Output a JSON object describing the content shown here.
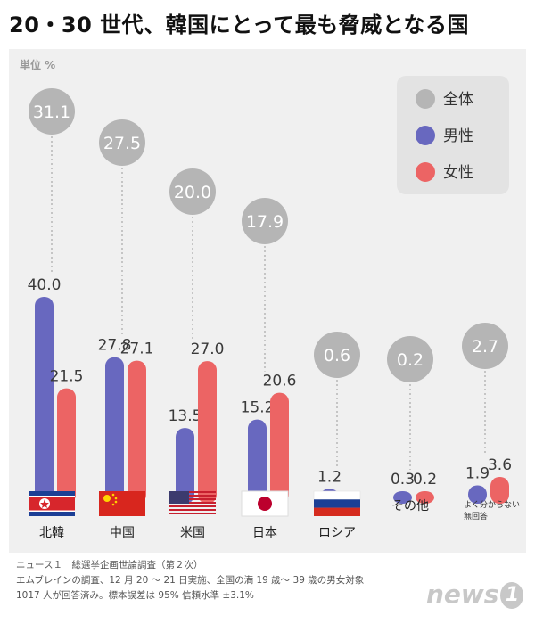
{
  "title": "20・30 世代、韓国にとって最も脅威となる国",
  "footer": {
    "line1": "ニュース１　総選挙企画世論調査（第２次）",
    "line2": "エムブレインの調査、12 月 20 ～ 21 日実施、全国の満 19 歳～ 39 歳の男女対象",
    "line3": "1017 人が回答済み。標本誤差は 95% 信頼水準 ±3.1%"
  },
  "logo": {
    "text": "news",
    "num": "1"
  },
  "colors": {
    "overall": "#b5b5b5",
    "male": "#6868bf",
    "female": "#ec6464",
    "panel": "#f0f0f0",
    "legend_bg": "#e3e3e3",
    "label": "#3a3a3a"
  },
  "chart_data": {
    "type": "bar",
    "title": "20・30 世代、韓国にとって最も脅威となる国",
    "unit_label": "単位 %",
    "categories": [
      "北韓",
      "中国",
      "米国",
      "日本",
      "ロシア",
      "その他",
      "よく分からない 無回答"
    ],
    "category_label_lines": [
      [
        "北韓"
      ],
      [
        "中国"
      ],
      [
        "米国"
      ],
      [
        "日本"
      ],
      [
        "ロシア"
      ],
      [
        "その他"
      ],
      [
        "よく分からない",
        "無回答"
      ]
    ],
    "series": [
      {
        "name": "全体",
        "values": [
          31.1,
          27.5,
          20.0,
          17.9,
          0.6,
          0.2,
          2.7
        ]
      },
      {
        "name": "男性",
        "values": [
          40.0,
          27.8,
          13.5,
          15.2,
          1.2,
          0.3,
          1.9
        ]
      },
      {
        "name": "女性",
        "values": [
          21.5,
          27.1,
          27.0,
          20.6,
          0.0,
          0.2,
          3.6
        ]
      }
    ],
    "series_value_labels": [
      [
        "31.1",
        "27.5",
        "20.0",
        "17.9",
        "0.6",
        "0.2",
        "2.7"
      ],
      [
        "40.0",
        "27.8",
        "13.5",
        "15.2",
        "1.2",
        "0.3",
        "1.9"
      ],
      [
        "21.5",
        "27.1",
        "27.0",
        "20.6",
        "",
        "0.2",
        "3.6"
      ]
    ],
    "flags": [
      "north-korea",
      "china",
      "usa",
      "japan",
      "russia",
      "",
      ""
    ],
    "legend_position": "top-right",
    "ylim": [
      0,
      40
    ]
  }
}
